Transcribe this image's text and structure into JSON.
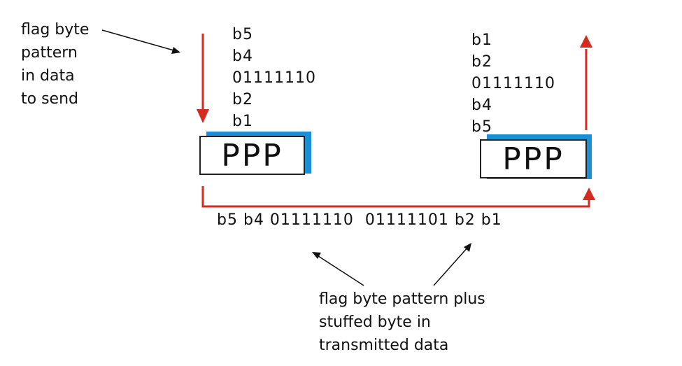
{
  "annotations": {
    "flag_label": [
      "flag byte",
      "pattern",
      "in data",
      "to send"
    ],
    "stuffed_label": [
      "flag byte pattern plus",
      "stuffed byte in",
      "transmitted  data"
    ]
  },
  "sender_stack": [
    "b5",
    "b4",
    "01111110",
    "b2",
    "b1"
  ],
  "receiver_stack": [
    "b1",
    "b2",
    "01111110",
    "b4",
    "b5"
  ],
  "ppp_left": "PPP",
  "ppp_right": "PPP",
  "transmitted": "b5 b4 01111110  01111101 b2 b1",
  "colors": {
    "arrow": "#d42a1f",
    "shadow": "#1a8fd6",
    "text": "#111111"
  }
}
